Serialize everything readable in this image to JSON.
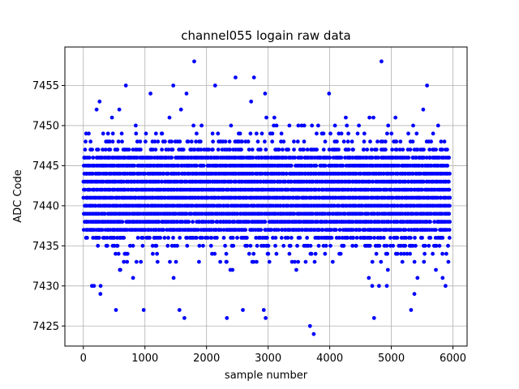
{
  "chart_data": {
    "type": "scatter",
    "title": "channel055 logain raw data",
    "xlabel": "sample number",
    "ylabel": "ADC Code",
    "xlim": [
      -300,
      6230
    ],
    "ylim": [
      7422.5,
      7459.8
    ],
    "xticks": [
      0,
      1000,
      2000,
      3000,
      4000,
      5000,
      6000
    ],
    "yticks": [
      7425,
      7430,
      7435,
      7440,
      7445,
      7450,
      7455
    ],
    "xtick_labels": [
      "0",
      "1000",
      "2000",
      "3000",
      "4000",
      "5000",
      "6000"
    ],
    "ytick_labels": [
      "7425",
      "7430",
      "7435",
      "7440",
      "7445",
      "7450",
      "7455"
    ],
    "grid": true,
    "marker_color": "#0000ff",
    "n_samples": 5940,
    "series": [
      {
        "values_by_level": [
          {
            "y": 7437,
            "density": 0.9
          },
          {
            "y": 7438,
            "density": 0.95
          },
          {
            "y": 7439,
            "density": 1.0
          },
          {
            "y": 7440,
            "density": 1.0
          },
          {
            "y": 7441,
            "density": 1.0
          },
          {
            "y": 7442,
            "density": 1.0
          },
          {
            "y": 7443,
            "density": 1.0
          },
          {
            "y": 7444,
            "density": 1.0
          },
          {
            "y": 7445,
            "density": 0.95
          },
          {
            "y": 7446,
            "density": 0.9
          },
          {
            "y": 7447,
            "density": 0.55
          },
          {
            "y": 7436,
            "density": 0.55
          },
          {
            "y": 7448,
            "density": 0.3
          },
          {
            "y": 7435,
            "density": 0.3
          },
          {
            "y": 7449,
            "density": 0.14
          },
          {
            "y": 7434,
            "density": 0.14
          },
          {
            "y": 7433,
            "density": 0.08
          },
          {
            "y": 7450,
            "density": 0.08
          },
          {
            "y": 7432,
            "density": 0.045
          },
          {
            "y": 7451,
            "density": 0.04
          },
          {
            "y": 7431,
            "density": 0.025
          },
          {
            "y": 7452,
            "density": 0.015
          },
          {
            "y": 7430,
            "density": 0.015
          },
          {
            "y": 7453,
            "density": 0.007
          },
          {
            "y": 7429,
            "density": 0.008
          },
          {
            "y": 7428,
            "density": 0.004
          },
          {
            "y": 7454,
            "density": 0.002
          },
          {
            "y": 7427,
            "density": 0.002
          }
        ],
        "rare_points": [
          {
            "x": 690,
            "y": 7455
          },
          {
            "x": 1460,
            "y": 7455
          },
          {
            "x": 2140,
            "y": 7455
          },
          {
            "x": 5580,
            "y": 7455
          },
          {
            "x": 2470,
            "y": 7456
          },
          {
            "x": 2770,
            "y": 7456
          },
          {
            "x": 1800,
            "y": 7458
          },
          {
            "x": 4840,
            "y": 7458
          },
          {
            "x": 1090,
            "y": 7454
          },
          {
            "x": 2950,
            "y": 7454
          },
          {
            "x": 1640,
            "y": 7426
          },
          {
            "x": 2330,
            "y": 7426
          },
          {
            "x": 2960,
            "y": 7426
          },
          {
            "x": 4720,
            "y": 7426
          },
          {
            "x": 3680,
            "y": 7425
          },
          {
            "x": 3740,
            "y": 7424
          },
          {
            "x": 530,
            "y": 7427
          },
          {
            "x": 980,
            "y": 7427
          },
          {
            "x": 1560,
            "y": 7427
          },
          {
            "x": 2590,
            "y": 7427
          },
          {
            "x": 2930,
            "y": 7427
          },
          {
            "x": 5320,
            "y": 7427
          },
          {
            "x": 280,
            "y": 7430
          },
          {
            "x": 140,
            "y": 7430
          },
          {
            "x": 5880,
            "y": 7430
          }
        ]
      }
    ]
  }
}
